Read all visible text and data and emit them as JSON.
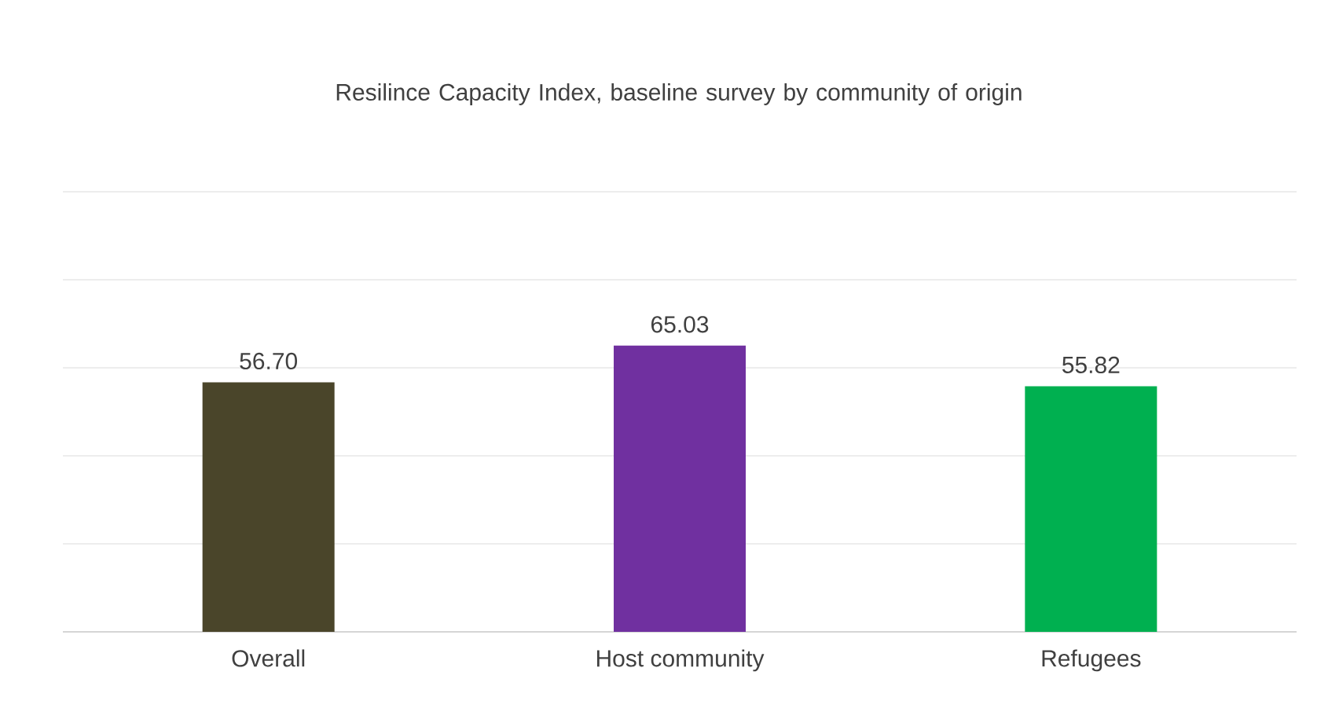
{
  "chart_data": {
    "type": "bar",
    "title": "Resilince Capacity Index, baseline survey by community of origin",
    "categories": [
      "Overall",
      "Host community",
      "Refugees"
    ],
    "values": [
      56.7,
      65.03,
      55.82
    ],
    "value_labels": [
      "56.70",
      "65.03",
      "55.82"
    ],
    "colors": [
      "#4a452a",
      "#7030a0",
      "#00b050"
    ],
    "ylim": [
      0,
      100
    ],
    "yticks": [
      {
        "value": 0,
        "label": null
      },
      {
        "value": 20,
        "label": null
      },
      {
        "value": 40,
        "label": null
      },
      {
        "value": 60,
        "label": null
      },
      {
        "value": 80,
        "label": null
      },
      {
        "value": 100,
        "label": null
      }
    ],
    "tick_labels": "x",
    "grid": "y"
  }
}
